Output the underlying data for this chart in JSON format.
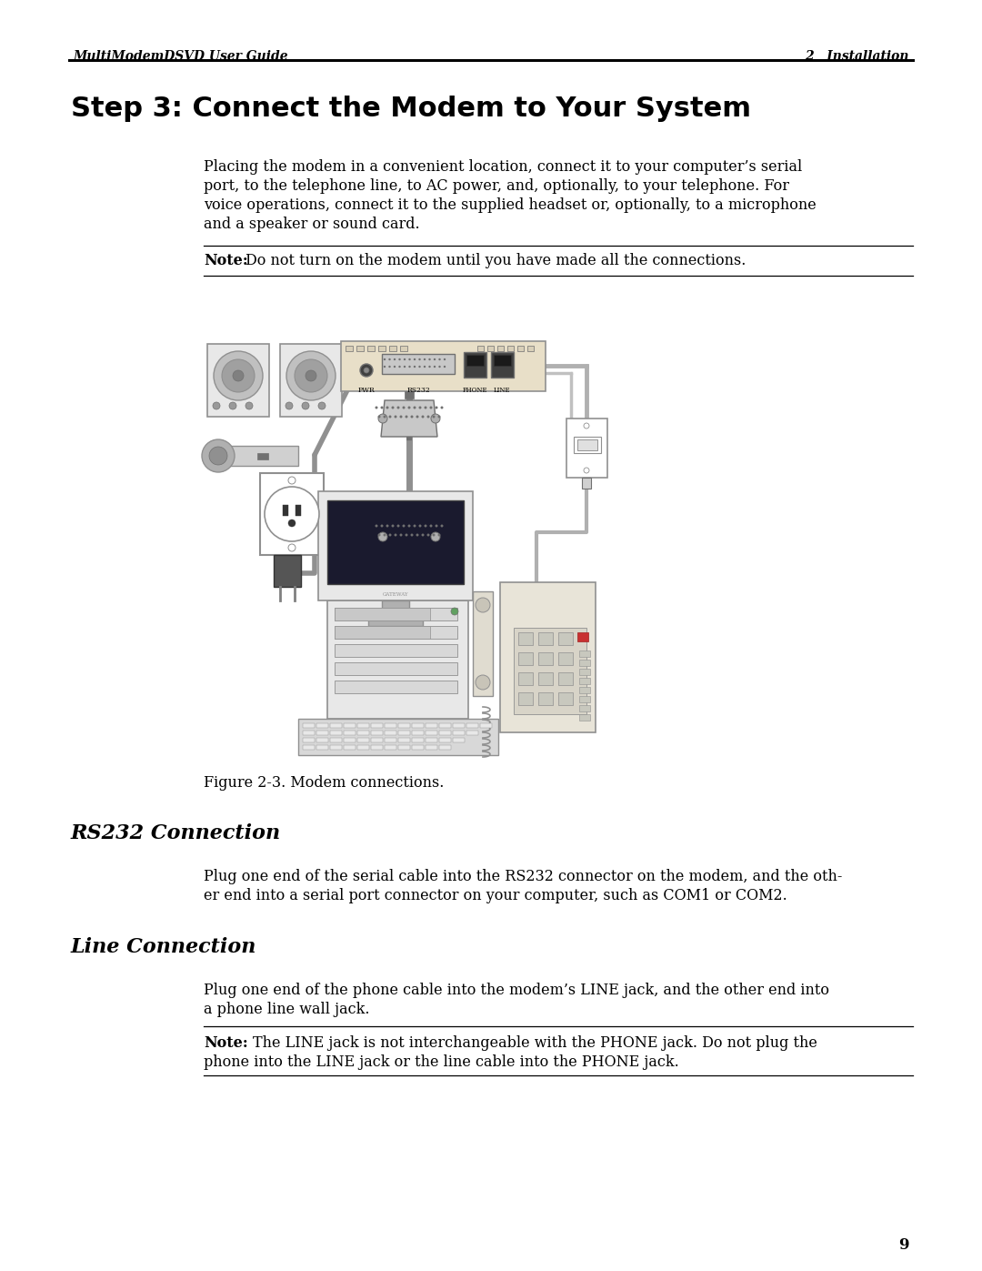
{
  "bg_color": "#ffffff",
  "header_left": "MultiModemDSVD User Guide",
  "header_right": "2   Installation",
  "page_number": "9",
  "step_title": "Step 3: Connect the Modem to Your System",
  "note1_label": "Note:",
  "note1_text": "Do not turn on the modem until you have made all the connections.",
  "figure_caption": "Figure 2-3. Modem connections.",
  "rs232_title": "RS232 Connection",
  "rs232_line1": "Plug one end of the serial cable into the RS232 connector on the modem, and the oth-",
  "rs232_line2": "er end into a serial port connector on your computer, such as COM1 or COM2.",
  "line_title": "Line Connection",
  "line_line1": "Plug one end of the phone cable into the modem’s LINE jack, and the other end into",
  "line_line2": "a phone line wall jack.",
  "note2_label": "Note:",
  "note2_line1": "The LINE jack is not interchangeable with the PHONE jack. Do not plug the",
  "note2_line2": "phone into the LINE jack or the line cable into the PHONE jack.",
  "intro_line1": "Placing the modem in a convenient location, connect it to your computer’s serial",
  "intro_line2": "port, to the telephone line, to AC power, and, optionally, to your telephone. For",
  "intro_line3": "voice operations, connect it to the supplied headset or, optionally, to a microphone",
  "intro_line4": "and a speaker or sound card.",
  "header_font_size": 10,
  "step_title_font_size": 22,
  "body_font_size": 11.5,
  "note_font_size": 11.5,
  "section_title_font_size": 16
}
